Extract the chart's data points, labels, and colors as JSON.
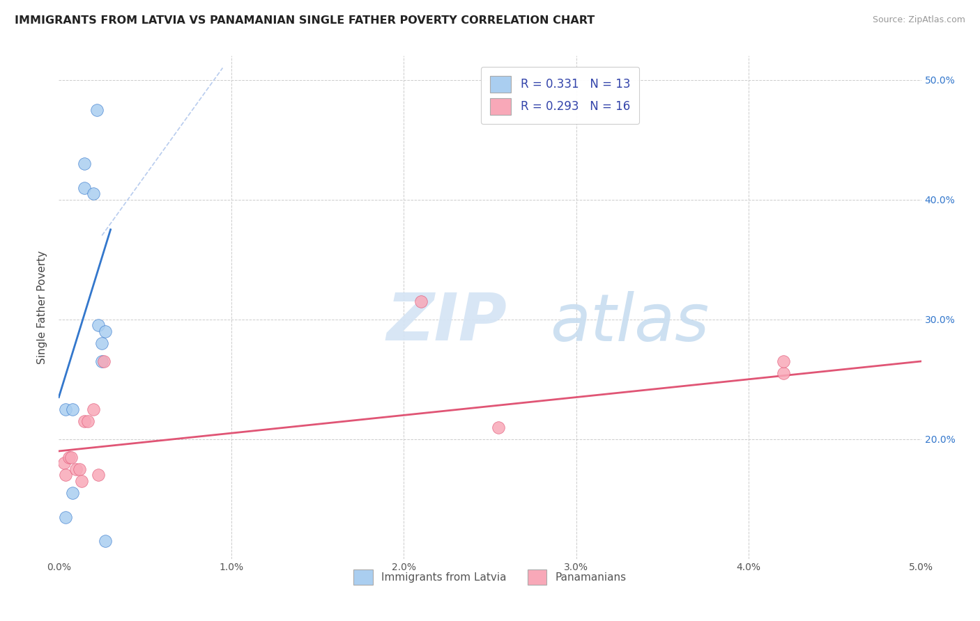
{
  "title": "IMMIGRANTS FROM LATVIA VS PANAMANIAN SINGLE FATHER POVERTY CORRELATION CHART",
  "source": "Source: ZipAtlas.com",
  "ylabel": "Single Father Poverty",
  "legend1_label": "Immigrants from Latvia",
  "legend2_label": "Panamanians",
  "r1": "0.331",
  "n1": "13",
  "r2": "0.293",
  "n2": "16",
  "x_min": 0.0,
  "x_max": 5.0,
  "y_min": 10.0,
  "y_max": 52.0,
  "watermark_zip": "ZIP",
  "watermark_atlas": "atlas",
  "blue_scatter_x": [
    0.04,
    0.08,
    0.08,
    0.15,
    0.15,
    0.2,
    0.23,
    0.25,
    0.25,
    0.27,
    0.27,
    0.04,
    0.22
  ],
  "blue_scatter_y": [
    22.5,
    22.5,
    15.5,
    43.0,
    41.0,
    40.5,
    29.5,
    28.0,
    26.5,
    29.0,
    11.5,
    13.5,
    47.5
  ],
  "pink_scatter_x": [
    0.03,
    0.04,
    0.06,
    0.07,
    0.1,
    0.12,
    0.13,
    0.15,
    0.17,
    0.2,
    0.23,
    0.26,
    2.1,
    2.55,
    4.2,
    4.2
  ],
  "pink_scatter_y": [
    18.0,
    17.0,
    18.5,
    18.5,
    17.5,
    17.5,
    16.5,
    21.5,
    21.5,
    22.5,
    17.0,
    26.5,
    31.5,
    21.0,
    25.5,
    26.5
  ],
  "blue_line_x": [
    0.0,
    0.3
  ],
  "blue_line_y": [
    23.5,
    37.5
  ],
  "pink_line_x": [
    0.0,
    5.0
  ],
  "pink_line_y": [
    19.0,
    26.5
  ],
  "diag_line_x": [
    0.25,
    0.95
  ],
  "diag_line_y": [
    37.0,
    51.0
  ],
  "blue_color": "#aacef0",
  "blue_line_color": "#3377cc",
  "pink_color": "#f8a8b8",
  "pink_line_color": "#e05575",
  "diag_color": "#b8ccee",
  "background_color": "#ffffff",
  "grid_color": "#cccccc",
  "scatter_size": 160,
  "title_fontsize": 11.5,
  "axis_fontsize": 10,
  "right_tick_color": "#3377cc"
}
